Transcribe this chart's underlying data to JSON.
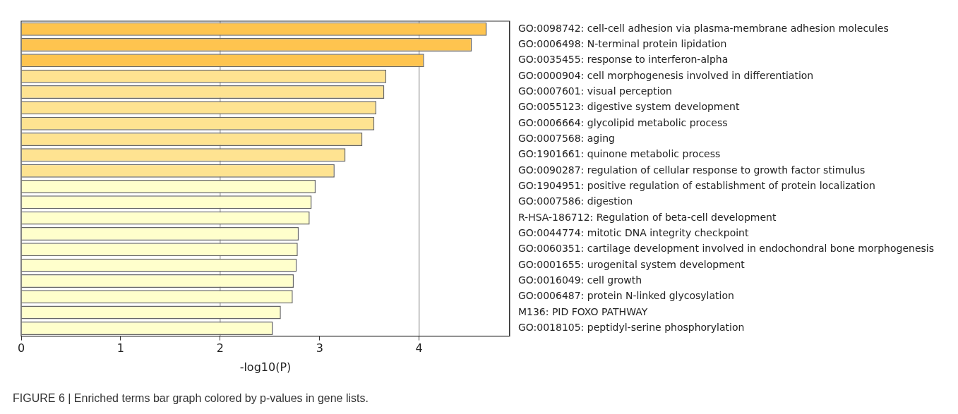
{
  "chart_data": {
    "type": "bar",
    "orientation": "horizontal",
    "xlabel": "-log10(P)",
    "categories": [
      "GO:0098742: cell-cell adhesion via plasma-membrane adhesion molecules",
      "GO:0006498: N-terminal protein lipidation",
      "GO:0035455: response to interferon-alpha",
      "GO:0000904: cell morphogenesis involved in differentiation",
      "GO:0007601: visual perception",
      "GO:0055123: digestive system development",
      "GO:0006664: glycolipid metabolic process",
      "GO:0007568: aging",
      "GO:1901661: quinone metabolic process",
      "GO:0090287: regulation of cellular response to growth factor stimulus",
      "GO:1904951: positive regulation of establishment of protein localization",
      "GO:0007586: digestion",
      "R-HSA-186712: Regulation of beta-cell development",
      "GO:0044774: mitotic DNA integrity checkpoint",
      "GO:0060351: cartilage development involved in endochondral bone morphogenesis",
      "GO:0001655: urogenital system development",
      "GO:0016049: cell growth",
      "GO:0006487: protein N-linked glycosylation",
      "M136: PID FOXO PATHWAY",
      "GO:0018105: peptidyl-serine phosphorylation"
    ],
    "values": [
      4.68,
      4.53,
      4.05,
      3.67,
      3.65,
      3.57,
      3.55,
      3.43,
      3.26,
      3.15,
      2.96,
      2.92,
      2.9,
      2.79,
      2.78,
      2.77,
      2.74,
      2.73,
      2.61,
      2.53
    ],
    "colors": [
      "#fec44f",
      "#fec44f",
      "#fec44f",
      "#fee391",
      "#fee391",
      "#fee391",
      "#fee391",
      "#fee391",
      "#fee391",
      "#fee391",
      "#ffffcc",
      "#ffffcc",
      "#ffffcc",
      "#ffffcc",
      "#ffffcc",
      "#ffffcc",
      "#ffffcc",
      "#ffffcc",
      "#ffffcc",
      "#ffffcc"
    ],
    "xlim": [
      0,
      4.91
    ],
    "xticks": [
      0,
      1,
      2,
      3,
      4
    ],
    "ref_lines": [
      {
        "axis": "x",
        "value": 2,
        "color": "#b0b0b0"
      },
      {
        "axis": "x",
        "value": 4,
        "color": "#b0b0b0"
      }
    ],
    "annotations": [
      "FIGURE 6 | Enriched terms bar graph colored by p-values in gene lists."
    ]
  }
}
